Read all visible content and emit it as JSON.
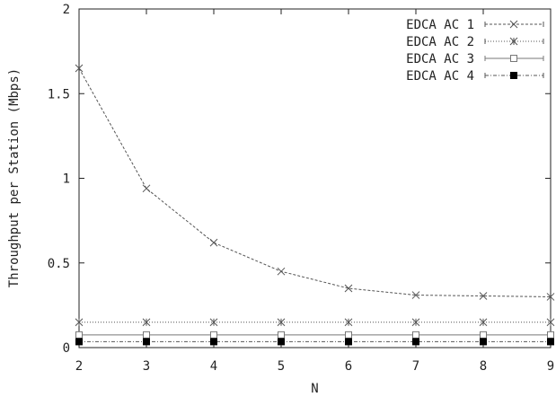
{
  "chart_data": {
    "type": "line",
    "title": "",
    "xlabel": "N",
    "ylabel": "Throughput per Station (Mbps)",
    "xlim": [
      2,
      9
    ],
    "ylim": [
      0,
      2
    ],
    "xticks": [
      "2",
      "3",
      "4",
      "5",
      "6",
      "7",
      "8",
      "9"
    ],
    "yticks": [
      "0",
      "0.5",
      "1",
      "1.5",
      "2"
    ],
    "grid": false,
    "legend_position": "top-right",
    "x": [
      2,
      3,
      4,
      5,
      6,
      7,
      8,
      9
    ],
    "series": [
      {
        "name": "EDCA AC 1",
        "marker": "x",
        "dash": "3,2",
        "color": "#555555",
        "values": [
          1.65,
          0.94,
          0.62,
          0.45,
          0.35,
          0.31,
          0.305,
          0.3
        ]
      },
      {
        "name": "EDCA AC 2",
        "marker": "star",
        "dash": "1,2",
        "color": "#555555",
        "values": [
          0.15,
          0.15,
          0.15,
          0.15,
          0.15,
          0.15,
          0.15,
          0.15
        ]
      },
      {
        "name": "EDCA AC 3",
        "marker": "open-square",
        "dash": "",
        "color": "#777777",
        "values": [
          0.075,
          0.075,
          0.075,
          0.075,
          0.075,
          0.075,
          0.075,
          0.075
        ]
      },
      {
        "name": "EDCA AC 4",
        "marker": "filled-square",
        "dash": "4,2,1,2",
        "color": "#555555",
        "values": [
          0.035,
          0.035,
          0.035,
          0.035,
          0.035,
          0.035,
          0.035,
          0.035
        ]
      }
    ]
  }
}
